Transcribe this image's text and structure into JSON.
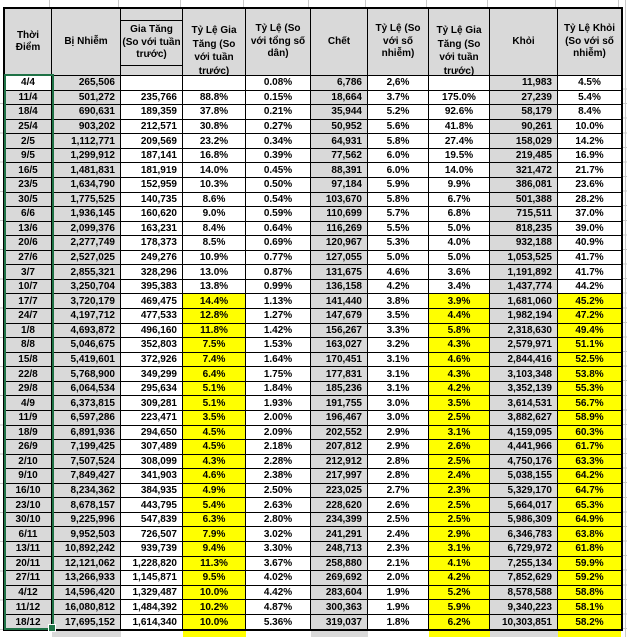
{
  "colors": {
    "header_fill": "#D9D9D9",
    "highlight_yellow": "#FFFF00",
    "selection_green": "#1F7246"
  },
  "selection": {
    "selected_column": "Thời Điểm",
    "active_cell_value": "4/4"
  },
  "table": {
    "columns": [
      {
        "key": "time",
        "label": "Thời\nĐiểm",
        "align": "center",
        "fill": "gray",
        "header_style": "normal"
      },
      {
        "key": "infected",
        "label": "Bị Nhiễm",
        "align": "right",
        "fill": "gray",
        "header_style": "normal"
      },
      {
        "key": "increase",
        "label": "Gia Tăng\n(So với tuần\ntrước)",
        "align": "right",
        "fill": "white",
        "header_style": "box"
      },
      {
        "key": "increase-rate",
        "label": "Tỷ Lệ Gia\nTăng (So\nvới tuần\ntrước)",
        "align": "center",
        "fill": "white",
        "header_style": "clip",
        "highlight_from": 15
      },
      {
        "key": "rate-of-population",
        "label": "Tỷ Lệ (So\nvới tổng số\ndân)",
        "align": "center",
        "fill": "white",
        "header_style": "normal"
      },
      {
        "key": "deaths",
        "label": "Chết",
        "align": "right",
        "fill": "gray",
        "header_style": "normal"
      },
      {
        "key": "death-rate",
        "label": "Tỷ Lệ (So\nvới số\nnhiễm)",
        "align": "center",
        "fill": "white",
        "header_style": "normal"
      },
      {
        "key": "death-increase-rate",
        "label": "Tỷ Lệ Gia\nTăng (So\nvới tuần\ntrước)",
        "align": "center",
        "fill": "white",
        "header_style": "clip",
        "highlight_from": 15
      },
      {
        "key": "recovered",
        "label": "Khỏi",
        "align": "right",
        "fill": "gray",
        "header_style": "normal"
      },
      {
        "key": "recovery-rate",
        "label": "Tỷ Lệ Khỏi\n(So với số\nnhiễm)",
        "align": "center",
        "fill": "white",
        "header_style": "normal",
        "highlight_from": 15
      }
    ],
    "rows": [
      [
        "4/4",
        "265,506",
        "",
        "",
        "0.08%",
        "6,786",
        "2,6%",
        "",
        "11,983",
        "4.5%"
      ],
      [
        "11/4",
        "501,272",
        "235,766",
        "88.8%",
        "0.15%",
        "18,664",
        "3.7%",
        "175.0%",
        "27,239",
        "5.4%"
      ],
      [
        "18/4",
        "690,631",
        "189,359",
        "37.8%",
        "0.21%",
        "35,944",
        "5.2%",
        "92.6%",
        "58,179",
        "8.4%"
      ],
      [
        "25/4",
        "903,202",
        "212,571",
        "30.8%",
        "0.27%",
        "50,952",
        "5.6%",
        "41.8%",
        "90,261",
        "10.0%"
      ],
      [
        "2/5",
        "1,112,771",
        "209,569",
        "23.2%",
        "0.34%",
        "64,931",
        "5.8%",
        "27.4%",
        "158,029",
        "14.2%"
      ],
      [
        "9/5",
        "1,299,912",
        "187,141",
        "16.8%",
        "0.39%",
        "77,562",
        "6.0%",
        "19.5%",
        "219,485",
        "16.9%"
      ],
      [
        "16/5",
        "1,481,831",
        "181,919",
        "14.0%",
        "0.45%",
        "88,391",
        "6.0%",
        "14.0%",
        "321,472",
        "21.7%"
      ],
      [
        "23/5",
        "1,634,790",
        "152,959",
        "10.3%",
        "0.50%",
        "97,184",
        "5.9%",
        "9.9%",
        "386,081",
        "23.6%"
      ],
      [
        "30/5",
        "1,775,525",
        "140,735",
        "8.6%",
        "0.54%",
        "103,670",
        "5.8%",
        "6.7%",
        "501,388",
        "28.2%"
      ],
      [
        "6/6",
        "1,936,145",
        "160,620",
        "9.0%",
        "0.59%",
        "110,699",
        "5.7%",
        "6.8%",
        "715,511",
        "37.0%"
      ],
      [
        "13/6",
        "2,099,376",
        "163,231",
        "8.4%",
        "0.64%",
        "116,269",
        "5.5%",
        "5.0%",
        "818,235",
        "39.0%"
      ],
      [
        "20/6",
        "2,277,749",
        "178,373",
        "8.5%",
        "0.69%",
        "120,967",
        "5.3%",
        "4.0%",
        "932,188",
        "40.9%"
      ],
      [
        "27/6",
        "2,527,025",
        "249,276",
        "10.9%",
        "0.77%",
        "127,055",
        "5.0%",
        "5.0%",
        "1,053,525",
        "41.7%"
      ],
      [
        "3/7",
        "2,855,321",
        "328,296",
        "13.0%",
        "0.87%",
        "131,675",
        "4.6%",
        "3.6%",
        "1,191,892",
        "41.7%"
      ],
      [
        "10/7",
        "3,250,704",
        "395,383",
        "13.8%",
        "0.99%",
        "136,158",
        "4.2%",
        "3.4%",
        "1,437,774",
        "44.2%"
      ],
      [
        "17/7",
        "3,720,179",
        "469,475",
        "14.4%",
        "1.13%",
        "141,440",
        "3.8%",
        "3.9%",
        "1,681,060",
        "45.2%"
      ],
      [
        "24/7",
        "4,197,712",
        "477,533",
        "12.8%",
        "1.27%",
        "147,679",
        "3.5%",
        "4.4%",
        "1,982,194",
        "47.2%"
      ],
      [
        "1/8",
        "4,693,872",
        "496,160",
        "11.8%",
        "1.42%",
        "156,267",
        "3.3%",
        "5.8%",
        "2,318,630",
        "49.4%"
      ],
      [
        "8/8",
        "5,046,675",
        "352,803",
        "7.5%",
        "1.53%",
        "163,027",
        "3.2%",
        "4.3%",
        "2,579,971",
        "51.1%"
      ],
      [
        "15/8",
        "5,419,601",
        "372,926",
        "7.4%",
        "1.64%",
        "170,451",
        "3.1%",
        "4.6%",
        "2,844,416",
        "52.5%"
      ],
      [
        "22/8",
        "5,768,900",
        "349,299",
        "6.4%",
        "1.75%",
        "177,831",
        "3.1%",
        "4.3%",
        "3,103,348",
        "53.8%"
      ],
      [
        "29/8",
        "6,064,534",
        "295,634",
        "5.1%",
        "1.84%",
        "185,236",
        "3.1%",
        "4.2%",
        "3,352,139",
        "55.3%"
      ],
      [
        "4/9",
        "6,373,815",
        "309,281",
        "5.1%",
        "1.93%",
        "191,755",
        "3.0%",
        "3.5%",
        "3,614,531",
        "56.7%"
      ],
      [
        "11/9",
        "6,597,286",
        "223,471",
        "3.5%",
        "2.00%",
        "196,467",
        "3.0%",
        "2.5%",
        "3,882,627",
        "58.9%"
      ],
      [
        "18/9",
        "6,891,936",
        "294,650",
        "4.5%",
        "2.09%",
        "202,552",
        "2.9%",
        "3.1%",
        "4,159,095",
        "60.3%"
      ],
      [
        "26/9",
        "7,199,425",
        "307,489",
        "4.5%",
        "2.18%",
        "207,812",
        "2.9%",
        "2.6%",
        "4,441,966",
        "61.7%"
      ],
      [
        "2/10",
        "7,507,524",
        "308,099",
        "4.3%",
        "2.28%",
        "212,912",
        "2.8%",
        "2.5%",
        "4,750,176",
        "63.3%"
      ],
      [
        "9/10",
        "7,849,427",
        "341,903",
        "4.6%",
        "2.38%",
        "217,997",
        "2.8%",
        "2.4%",
        "5,038,155",
        "64.2%"
      ],
      [
        "16/10",
        "8,234,362",
        "384,935",
        "4.9%",
        "2.50%",
        "223,025",
        "2.7%",
        "2.3%",
        "5,329,170",
        "64.7%"
      ],
      [
        "23/10",
        "8,678,157",
        "443,795",
        "5.4%",
        "2.63%",
        "228,620",
        "2.6%",
        "2.5%",
        "5,664,017",
        "65.3%"
      ],
      [
        "30/10",
        "9,225,996",
        "547,839",
        "6.3%",
        "2.80%",
        "234,399",
        "2.5%",
        "2.5%",
        "5,986,309",
        "64.9%"
      ],
      [
        "6/11",
        "9,952,503",
        "726,507",
        "7.9%",
        "3.02%",
        "241,291",
        "2.4%",
        "2.9%",
        "6,346,783",
        "63.8%"
      ],
      [
        "13/11",
        "10,892,242",
        "939,739",
        "9.4%",
        "3.30%",
        "248,713",
        "2.3%",
        "3.1%",
        "6,729,972",
        "61.8%"
      ],
      [
        "20/11",
        "12,121,062",
        "1,228,820",
        "11.3%",
        "3.67%",
        "258,880",
        "2.1%",
        "4.1%",
        "7,255,134",
        "59.9%"
      ],
      [
        "27/11",
        "13,266,933",
        "1,145,871",
        "9.5%",
        "4.02%",
        "269,692",
        "2.0%",
        "4.2%",
        "7,852,629",
        "59.2%"
      ],
      [
        "4/12",
        "14,596,420",
        "1,329,487",
        "10.0%",
        "4.42%",
        "283,604",
        "1.9%",
        "5.2%",
        "8,578,588",
        "58.8%"
      ],
      [
        "11/12",
        "16,080,812",
        "1,484,392",
        "10.2%",
        "4.87%",
        "300,363",
        "1.9%",
        "5.9%",
        "9,340,223",
        "58.1%"
      ],
      [
        "18/12",
        "17,695,152",
        "1,614,340",
        "10.0%",
        "5.36%",
        "319,037",
        "1.8%",
        "6.2%",
        "10,303,851",
        "58.2%"
      ]
    ]
  }
}
